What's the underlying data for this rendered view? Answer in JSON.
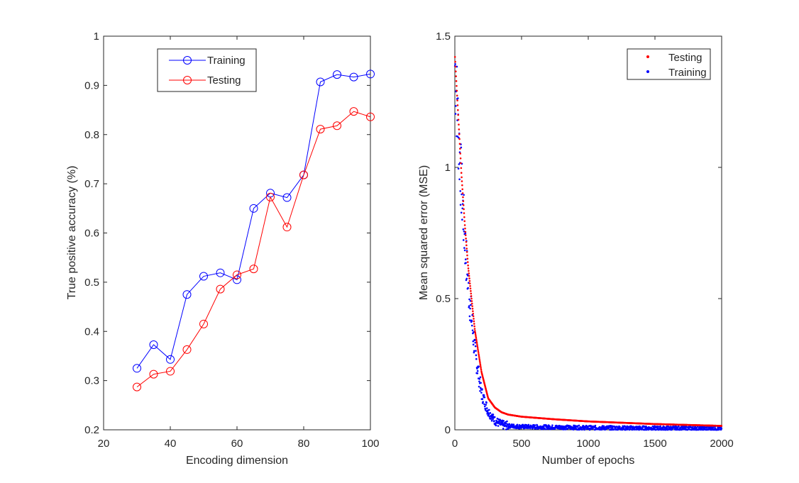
{
  "chart_data": [
    {
      "type": "line",
      "title": "",
      "xlabel": "Encoding dimension",
      "ylabel": "True positive accuracy (%)",
      "xlim": [
        20,
        100
      ],
      "ylim": [
        0.2,
        1.0
      ],
      "xticks": [
        20,
        40,
        60,
        80,
        100
      ],
      "yticks": [
        0.2,
        0.3,
        0.4,
        0.5,
        0.6,
        0.7,
        0.8,
        0.9,
        1.0
      ],
      "xtick_labels": [
        "20",
        "40",
        "60",
        "80",
        "100"
      ],
      "ytick_labels": [
        "0.2",
        "0.3",
        "0.4",
        "0.5",
        "0.6",
        "0.7",
        "0.8",
        "0.9",
        "1"
      ],
      "legend_position": "top-center",
      "x": [
        30,
        35,
        40,
        45,
        50,
        55,
        60,
        65,
        70,
        75,
        80,
        85,
        90,
        95,
        100
      ],
      "series": [
        {
          "name": "Training",
          "color": "#0000ff",
          "marker": "circle",
          "values": [
            0.325,
            0.373,
            0.343,
            0.475,
            0.512,
            0.519,
            0.505,
            0.65,
            0.681,
            0.672,
            0.718,
            0.907,
            0.922,
            0.917,
            0.923
          ]
        },
        {
          "name": "Testing",
          "color": "#ff0000",
          "marker": "circle",
          "values": [
            0.287,
            0.313,
            0.319,
            0.363,
            0.415,
            0.486,
            0.515,
            0.527,
            0.673,
            0.612,
            0.718,
            0.811,
            0.818,
            0.847,
            0.836
          ]
        }
      ]
    },
    {
      "type": "scatter",
      "title": "",
      "xlabel": "Number of epochs",
      "ylabel": "Mean squared error (MSE)",
      "xlim": [
        0,
        2000
      ],
      "ylim": [
        0,
        1.5
      ],
      "xticks": [
        0,
        500,
        1000,
        1500,
        2000
      ],
      "yticks": [
        0,
        0.5,
        1.0,
        1.5
      ],
      "xtick_labels": [
        "0",
        "500",
        "1000",
        "1500",
        "2000"
      ],
      "ytick_labels": [
        "0",
        "0.5",
        "1",
        "1.5"
      ],
      "legend_position": "top-right",
      "series": [
        {
          "name": "Testing",
          "color": "#ff0000",
          "marker": "dot",
          "description_points_x": [
            0,
            25,
            50,
            75,
            100,
            150,
            200,
            250,
            300,
            350,
            400,
            500,
            750,
            1000,
            1500,
            2000
          ],
          "values": [
            1.43,
            1.2,
            0.97,
            0.78,
            0.62,
            0.38,
            0.22,
            0.12,
            0.085,
            0.067,
            0.058,
            0.05,
            0.04,
            0.032,
            0.022,
            0.015
          ]
        },
        {
          "name": "Training",
          "color": "#0000ff",
          "marker": "dot",
          "description_points_x": [
            0,
            25,
            50,
            75,
            100,
            150,
            200,
            250,
            300,
            350,
            400,
            500,
            750,
            1000,
            1500,
            2000
          ],
          "values": [
            1.4,
            1.15,
            0.92,
            0.72,
            0.55,
            0.3,
            0.14,
            0.07,
            0.035,
            0.02,
            0.015,
            0.012,
            0.01,
            0.008,
            0.006,
            0.005
          ]
        }
      ]
    }
  ]
}
